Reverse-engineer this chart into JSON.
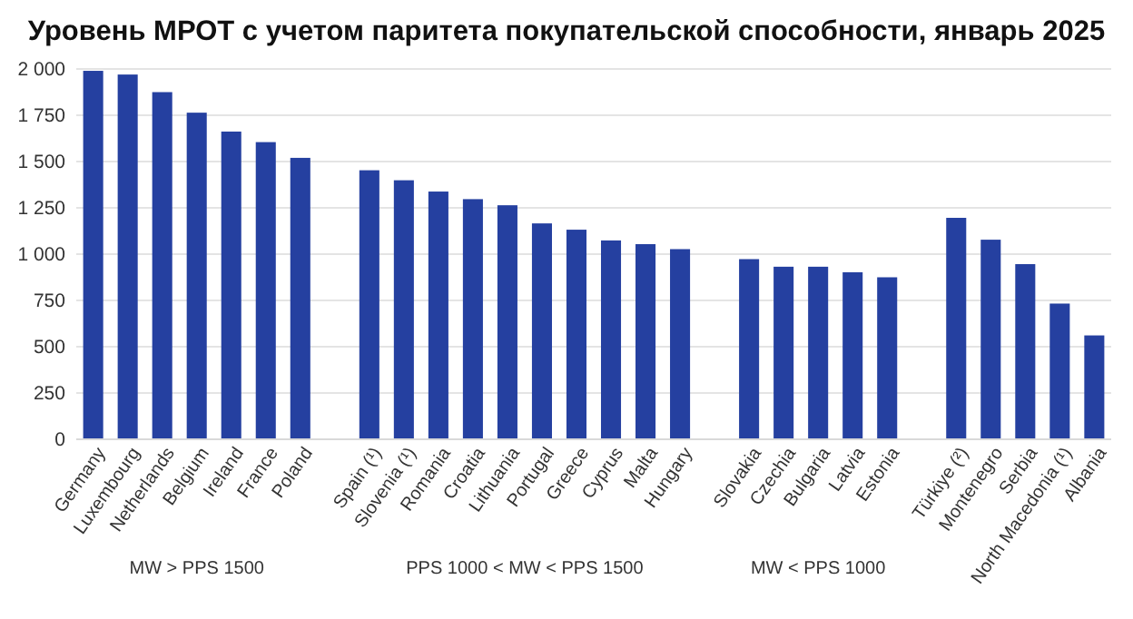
{
  "chart_data": {
    "type": "bar",
    "title": "Уровень МРОТ с учетом паритета покупательской способности, январь 2025",
    "categories": [
      "Germany",
      "Luxembourg",
      "Netherlands",
      "Belgium",
      "Ireland",
      "France",
      "Poland",
      null,
      "Spain (¹)",
      "Slovenia (¹)",
      "Romania",
      "Croatia",
      "Lithuania",
      "Portugal",
      "Greece",
      "Cyprus",
      "Malta",
      "Hungary",
      null,
      "Slovakia",
      "Czechia",
      "Bulgaria",
      "Latvia",
      "Estonia",
      null,
      "Türkiye (²)",
      "Montenegro",
      "Serbia",
      "North Macedonia (¹)",
      "Albania"
    ],
    "values": [
      1990,
      1970,
      1875,
      1764,
      1662,
      1605,
      1520,
      null,
      1453,
      1399,
      1338,
      1297,
      1264,
      1166,
      1132,
      1074,
      1054,
      1027,
      null,
      973,
      932,
      932,
      902,
      875,
      null,
      1196,
      1078,
      946,
      733,
      561
    ],
    "color": "#2540a0",
    "ylim": [
      0,
      2000
    ],
    "yticks": [
      {
        "value": 0,
        "label": "0"
      },
      {
        "value": 250,
        "label": "250"
      },
      {
        "value": 500,
        "label": "500"
      },
      {
        "value": 750,
        "label": "750"
      },
      {
        "value": 1000,
        "label": "1 000"
      },
      {
        "value": 1250,
        "label": "1 250"
      },
      {
        "value": 1500,
        "label": "1 500"
      },
      {
        "value": 1750,
        "label": "1 750"
      },
      {
        "value": 2000,
        "label": "2 000"
      }
    ],
    "grid": "y",
    "annotations": [
      "MW > PPS 1500",
      "PPS 1000 < MW < PPS 1500",
      "MW < PPS 1000"
    ]
  }
}
